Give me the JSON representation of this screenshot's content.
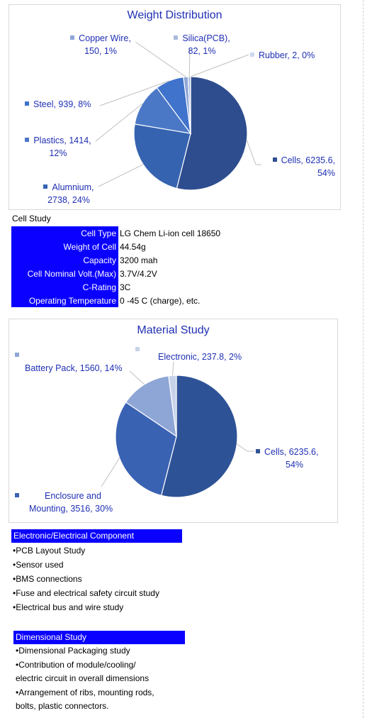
{
  "chart_data": [
    {
      "type": "pie",
      "title": "Weight Distribution",
      "slices": [
        {
          "name": "Cells",
          "value": 6235.6,
          "percent": "54%",
          "color": "#2e4d8f"
        },
        {
          "name": "Alumnium",
          "value": 2738,
          "percent": "24%",
          "color": "#3563b0"
        },
        {
          "name": "Plastics",
          "value": 1414,
          "percent": "12%",
          "color": "#4a78c6"
        },
        {
          "name": "Steel",
          "value": 939,
          "percent": "8%",
          "color": "#3f73cc"
        },
        {
          "name": "Copper Wire",
          "value": 150,
          "percent": "1%",
          "color": "#8ea6d6"
        },
        {
          "name": "Silica(PCB)",
          "value": 82,
          "percent": "1%",
          "color": "#a9b9dc"
        },
        {
          "name": "Rubber",
          "value": 2,
          "percent": "0%",
          "color": "#cfd8ee"
        }
      ],
      "labels": {
        "copper": [
          "Copper Wire,",
          "150, 1%"
        ],
        "silica": [
          "Silica(PCB),",
          "82, 1%"
        ],
        "rubber": [
          "Rubber, 2, 0%"
        ],
        "steel": [
          "Steel, 939, 8%"
        ],
        "plastics": [
          "Plastics, 1414,",
          "12%"
        ],
        "alum": [
          "Alumnium,",
          "2738, 24%"
        ],
        "cells": [
          "Cells, 6235.6,",
          "54%"
        ]
      }
    },
    {
      "type": "pie",
      "title": "Material Study",
      "slices": [
        {
          "name": "Cells",
          "value": 6235.6,
          "percent": "54%",
          "color": "#2e5296"
        },
        {
          "name": "Enclosure and Mounting",
          "value": 3516,
          "percent": "30%",
          "color": "#3a62b3"
        },
        {
          "name": "Battery Pack",
          "value": 1560,
          "percent": "14%",
          "color": "#8ea6d6"
        },
        {
          "name": "Electronic",
          "value": 237.8,
          "percent": "2%",
          "color": "#c7d2ea"
        }
      ],
      "labels": {
        "battery": [
          "Battery Pack, 1560, 14%"
        ],
        "electronic": [
          "Electronic, 237.8, 2%"
        ],
        "cells": [
          "Cells, 6235.6,",
          "54%"
        ],
        "enclosure": [
          "Enclosure and",
          "Mounting, 3516, 30%"
        ]
      }
    }
  ],
  "cell_study": {
    "title": "Cell Study",
    "rows": [
      {
        "k": "Cell Type",
        "v": "LG Chem Li-ion cell 18650"
      },
      {
        "k": "Weight of Cell",
        "v": "44.54g"
      },
      {
        "k": "Capacity",
        "v": "3200 mah"
      },
      {
        "k": "Cell Nominal Volt.(Max)",
        "v": "3.7V/4.2V"
      },
      {
        "k": "C-Rating",
        "v": "3C"
      },
      {
        "k": "Operating Temperature",
        "v": " 0 -45 C (charge), etc."
      }
    ]
  },
  "electronic": {
    "title": "Electronic/Electrical Component",
    "items": [
      "•PCB Layout Study",
      "•Sensor used",
      "•BMS connections",
      "•Fuse and electrical safety circuit study",
      "•Electrical bus and wire study"
    ]
  },
  "dimensional": {
    "title": "Dimensional Study",
    "items": [
      "•Dimensional Packaging study",
      "•Contribution of module/cooling/",
      "electric circuit in overall dimensions",
      "•Arrangement of ribs, mounting rods,",
      "bolts, plastic connectors."
    ]
  }
}
